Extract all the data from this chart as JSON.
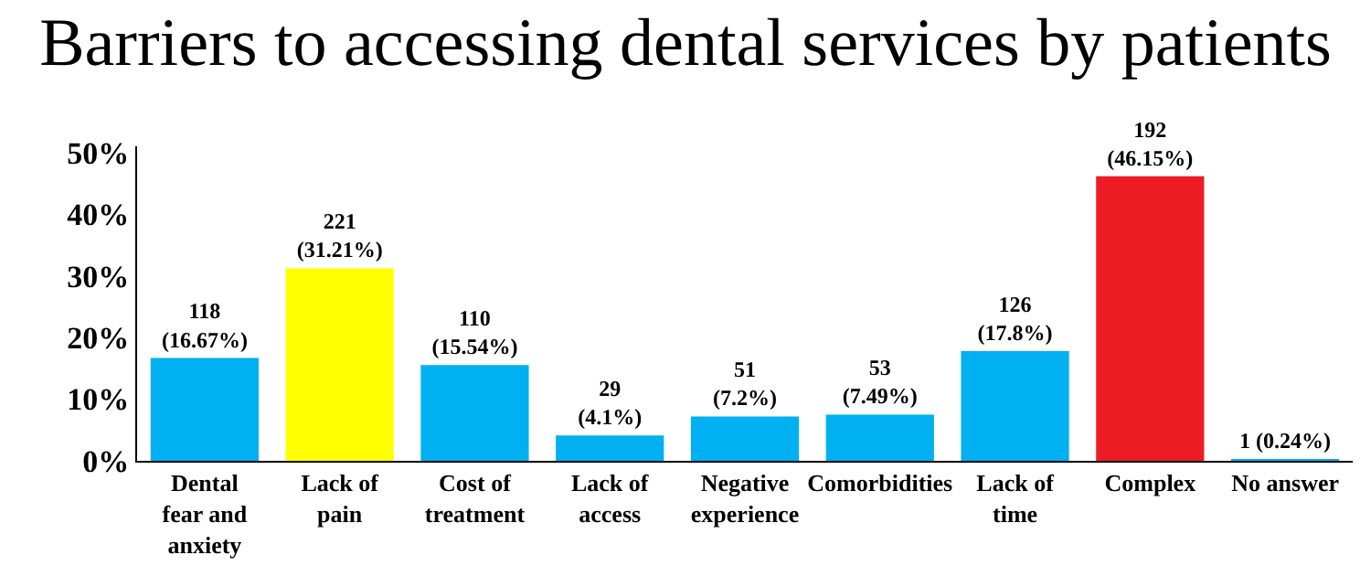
{
  "chart_data": {
    "type": "bar",
    "title": "Barriers to accessing dental services by patients",
    "categories": [
      "Dental fear and anxiety",
      "Lack of pain",
      "Cost of treatment",
      "Lack of access",
      "Negative experience",
      "Comorbidities",
      "Lack of time",
      "Complex",
      "No answer"
    ],
    "values": [
      16.67,
      31.21,
      15.54,
      4.1,
      7.2,
      7.49,
      17.8,
      46.15,
      0.24
    ],
    "colors": [
      "#00b0f0",
      "#ffff00",
      "#00b0f0",
      "#00b0f0",
      "#00b0f0",
      "#00b0f0",
      "#00b0f0",
      "#ed1c24",
      "#00b0f0"
    ],
    "value_labels": [
      "118\n(16.67%)",
      "221\n(31.21%)",
      "110\n(15.54%)",
      "29\n(4.1%)",
      "51\n(7.2%)",
      "53\n(7.49%)",
      "126\n(17.8%)",
      "192\n(46.15%)",
      "1 (0.24%)"
    ],
    "ylim": [
      0,
      51
    ],
    "yticks": [
      {
        "value": 0,
        "label": "0%"
      },
      {
        "value": 10,
        "label": "10%"
      },
      {
        "value": 20,
        "label": "20%"
      },
      {
        "value": 30,
        "label": "30%"
      },
      {
        "value": 40,
        "label": "40%"
      },
      {
        "value": 50,
        "label": "50%"
      }
    ],
    "grid": false,
    "legend": false
  }
}
